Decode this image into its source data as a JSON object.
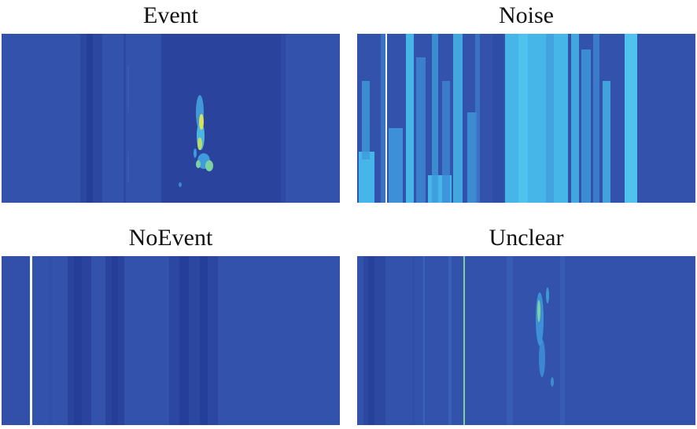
{
  "panels": [
    {
      "id": "event",
      "title": "Event"
    },
    {
      "id": "noise",
      "title": "Noise"
    },
    {
      "id": "noevent",
      "title": "NoEvent"
    },
    {
      "id": "unclear",
      "title": "Unclear"
    }
  ],
  "colors": {
    "background_blue": "#3352AB",
    "dark_stripe": "#253E99",
    "light_noise": "#46B6E8",
    "mid_cyan": "#3F9BDC",
    "signal_green": "#7FD1A0",
    "signal_yellow": "#D7E35A",
    "white_line": "#F2F6FF"
  }
}
